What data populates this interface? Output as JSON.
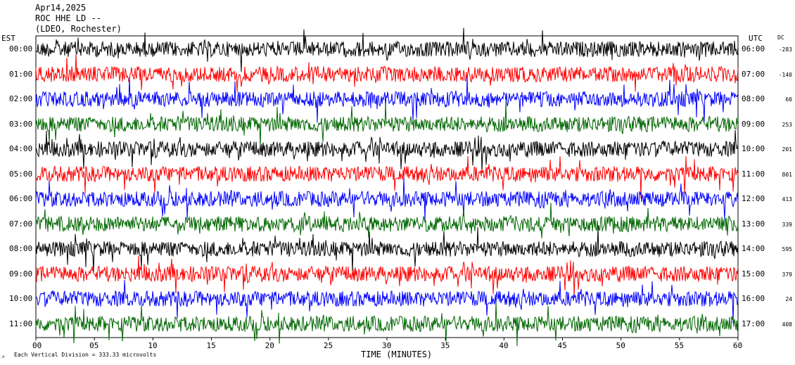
{
  "header": {
    "date": "Apr14,2025",
    "station": "ROC HHE LD --",
    "network": "(LDEO, Rochester)"
  },
  "left_axis": {
    "title": "EST",
    "hours": [
      "00:00",
      "01:00",
      "02:00",
      "03:00",
      "04:00",
      "05:00",
      "06:00",
      "07:00",
      "08:00",
      "09:00",
      "10:00",
      "11:00"
    ]
  },
  "right_axis": {
    "title": "UTC",
    "dc_title": "DC",
    "hours": [
      "06:00",
      "07:00",
      "08:00",
      "09:00",
      "10:00",
      "11:00",
      "12:00",
      "13:00",
      "14:00",
      "15:00",
      "16:00",
      "17:00"
    ],
    "dc_values": [
      "-283",
      "-140",
      "60",
      "253",
      "201",
      "801",
      "413",
      "339",
      "595",
      "379",
      "24",
      "408"
    ]
  },
  "x_axis": {
    "label": "TIME (MINUTES)",
    "ticks": [
      "00",
      "05",
      "10",
      "15",
      "20",
      "25",
      "30",
      "35",
      "40",
      "45",
      "50",
      "55",
      "60"
    ],
    "range": [
      0,
      60
    ]
  },
  "footer": {
    "scale_text": "Each Vertical Division =  333.33 microvolts"
  },
  "trace_colors": [
    "#000000",
    "#ff0000",
    "#0000ff",
    "#006600"
  ]
}
